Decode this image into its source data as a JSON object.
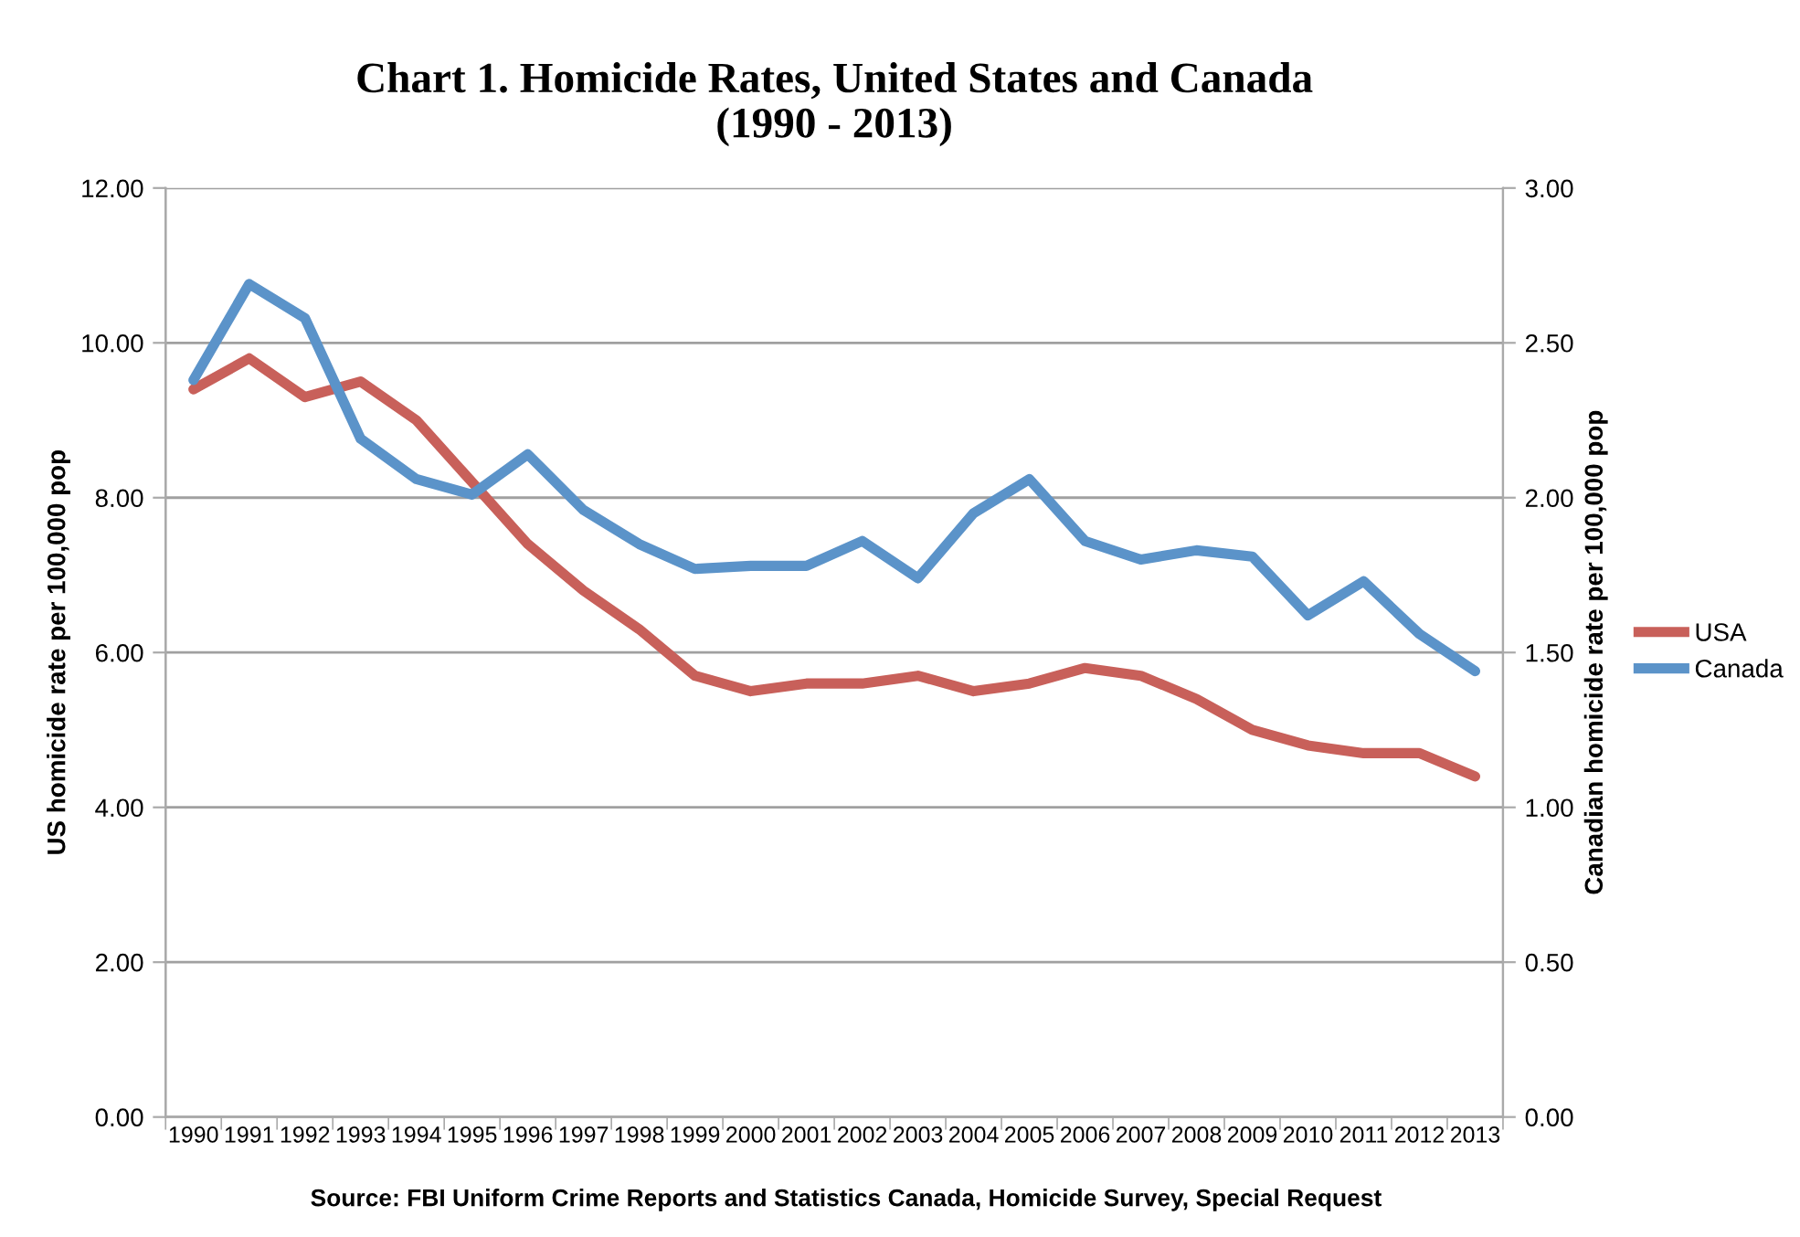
{
  "chart_data": {
    "type": "line",
    "title": "Chart 1. Homicide Rates, United States and Canada\n(1990 - 2013)",
    "categories": [
      "1990",
      "1991",
      "1992",
      "1993",
      "1994",
      "1995",
      "1996",
      "1997",
      "1998",
      "1999",
      "2000",
      "2001",
      "2002",
      "2003",
      "2004",
      "2005",
      "2006",
      "2007",
      "2008",
      "2009",
      "2010",
      "2011",
      "2012",
      "2013"
    ],
    "series": [
      {
        "name": "USA",
        "color": "#c8605a",
        "values": [
          9.4,
          9.8,
          9.3,
          9.5,
          9.0,
          8.2,
          7.4,
          6.8,
          6.3,
          5.7,
          5.5,
          5.6,
          5.6,
          5.7,
          5.5,
          5.6,
          5.8,
          5.7,
          5.4,
          5.0,
          4.8,
          4.7,
          4.7,
          4.4
        ]
      },
      {
        "name": "Canada",
        "color": "#5b93c9",
        "axis": "y2",
        "values": [
          2.38,
          2.69,
          2.58,
          2.19,
          2.06,
          2.01,
          2.14,
          1.96,
          1.85,
          1.77,
          1.78,
          1.78,
          1.86,
          1.74,
          1.95,
          2.06,
          1.86,
          1.8,
          1.83,
          1.81,
          1.62,
          1.73,
          1.56,
          1.44
        ]
      }
    ],
    "ylabel": "US homicide rate per 100,000 pop",
    "y2label": "Canadian homicide rate per 100,000 pop",
    "ylim": [
      0,
      12
    ],
    "yticks": [
      {
        "value": 0,
        "label": "0.00"
      },
      {
        "value": 2,
        "label": "2.00"
      },
      {
        "value": 4,
        "label": "4.00"
      },
      {
        "value": 6,
        "label": "6.00"
      },
      {
        "value": 8,
        "label": "8.00"
      },
      {
        "value": 10,
        "label": "10.00"
      },
      {
        "value": 12,
        "label": "12.00"
      }
    ],
    "y2lim": [
      0,
      3
    ],
    "y2ticks": [
      {
        "value": 0,
        "label": "0.00"
      },
      {
        "value": 0.5,
        "label": "0.50"
      },
      {
        "value": 1,
        "label": "1.00"
      },
      {
        "value": 1.5,
        "label": "1.50"
      },
      {
        "value": 2,
        "label": "2.00"
      },
      {
        "value": 2.5,
        "label": "2.50"
      },
      {
        "value": 3,
        "label": "3.00"
      }
    ],
    "grid": "y",
    "legend": "right",
    "marker": "none",
    "line_style": "solid",
    "annotations": [
      "Source: FBI Uniform Crime Reports and Statistics Canada, Homicide Survey, Special Request"
    ]
  }
}
